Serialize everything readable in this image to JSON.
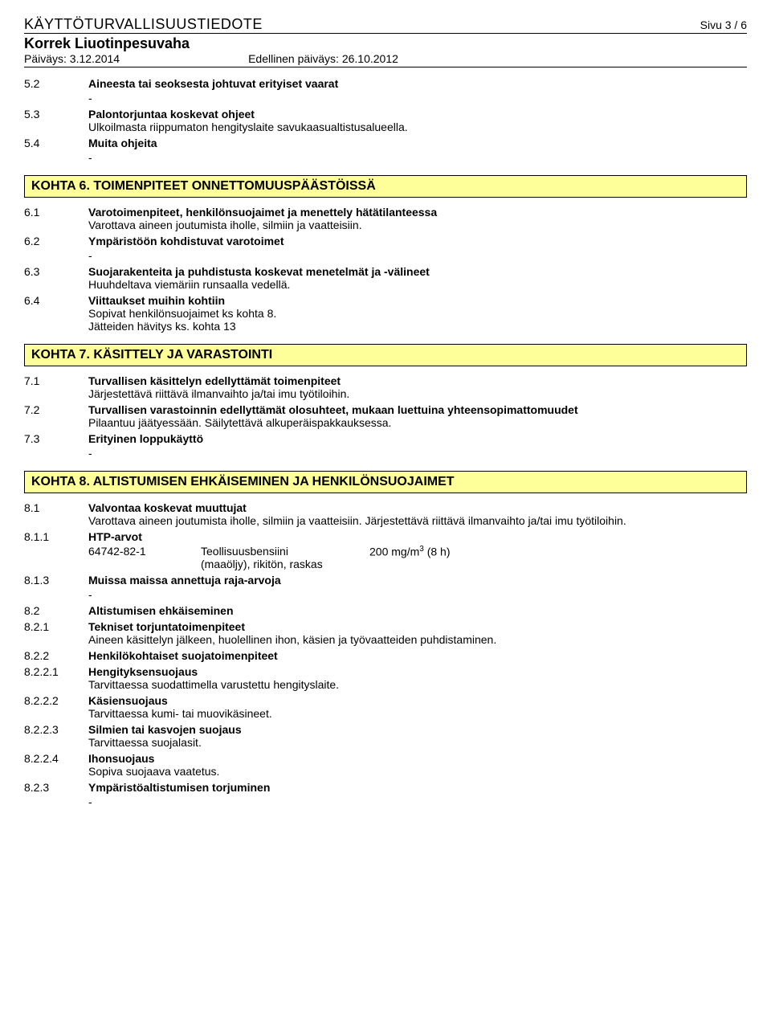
{
  "header": {
    "doc_title": "KÄYTTÖTURVALLISUUSTIEDOTE",
    "page": "Sivu 3 / 6",
    "product": "Korrek Liuotinpesuvaha",
    "date_label": "Päiväys: 3.12.2014",
    "prev_date_label": "Edellinen päiväys: 26.10.2012"
  },
  "pre_sections": [
    {
      "num": "5.2",
      "heading": "Aineesta tai seoksesta johtuvat erityiset vaarat",
      "body": "",
      "dash": true
    },
    {
      "num": "5.3",
      "heading": "Palontorjuntaa koskevat ohjeet",
      "body": "Ulkoilmasta riippumaton hengityslaite savukaasualtistusalueella.",
      "dash": false
    },
    {
      "num": "5.4",
      "heading": "Muita ohjeita",
      "body": "",
      "dash": true
    }
  ],
  "kohta6": {
    "title": "KOHTA 6. TOIMENPITEET ONNETTOMUUSPÄÄSTÖISSÄ",
    "rows": [
      {
        "num": "6.1",
        "heading": "Varotoimenpiteet, henkilönsuojaimet ja menettely hätätilanteessa",
        "body": "Varottava aineen joutumista iholle, silmiin ja vaatteisiin.",
        "dash": false
      },
      {
        "num": "6.2",
        "heading": "Ympäristöön kohdistuvat varotoimet",
        "body": "",
        "dash": true
      },
      {
        "num": "6.3",
        "heading": "Suojarakenteita ja puhdistusta koskevat menetelmät ja -välineet",
        "body": "Huuhdeltava viemäriin runsaalla vedellä.",
        "dash": false
      },
      {
        "num": "6.4",
        "heading": "Viittaukset muihin kohtiin",
        "body": "Sopivat henkilönsuojaimet ks kohta 8.",
        "body2": "Jätteiden hävitys ks. kohta 13",
        "dash": false
      }
    ]
  },
  "kohta7": {
    "title": "KOHTA 7. KÄSITTELY JA VARASTOINTI",
    "rows": [
      {
        "num": "7.1",
        "heading": "Turvallisen käsittelyn edellyttämät toimenpiteet",
        "body": "Järjestettävä riittävä ilmanvaihto ja/tai imu työtiloihin.",
        "dash": false
      },
      {
        "num": "7.2",
        "heading": "Turvallisen varastoinnin edellyttämät olosuhteet, mukaan luettuina yhteensopimattomuudet",
        "body": "Pilaantuu jäätyessään. Säilytettävä alkuperäispakkauksessa.",
        "dash": false
      },
      {
        "num": "7.3",
        "heading": "Erityinen loppukäyttö",
        "body": "",
        "dash": true
      }
    ]
  },
  "kohta8": {
    "title": "KOHTA 8. ALTISTUMISEN EHKÄISEMINEN JA HENKILÖNSUOJAIMET",
    "rows1": [
      {
        "num": "8.1",
        "heading": "Valvontaa koskevat muuttujat",
        "body": "Varottava aineen joutumista iholle, silmiin ja vaatteisiin. Järjestettävä riittävä ilmanvaihto ja/tai imu työtiloihin.",
        "dash": false
      },
      {
        "num": "8.1.1",
        "heading": "HTP-arvot",
        "body": "",
        "dash": false
      }
    ],
    "htp": {
      "cas": "64742-82-1",
      "name_line1": "Teollisuusbensiini",
      "name_line2": "(maaöljy), rikitön, raskas",
      "value_pre": "200 mg/m",
      "value_sup": "3",
      "value_post": " (8 h)"
    },
    "rows2": [
      {
        "num": "8.1.3",
        "heading": "Muissa maissa annettuja raja-arvoja",
        "body": "",
        "dash": true
      },
      {
        "num": "8.2",
        "heading": "Altistumisen ehkäiseminen",
        "body": "",
        "dash": false
      },
      {
        "num": "8.2.1",
        "heading": "Tekniset torjuntatoimenpiteet",
        "body": "Aineen käsittelyn jälkeen, huolellinen ihon, käsien ja työvaatteiden puhdistaminen.",
        "dash": false
      },
      {
        "num": "8.2.2",
        "heading": "Henkilökohtaiset suojatoimenpiteet",
        "body": "",
        "dash": false
      },
      {
        "num": "8.2.2.1",
        "heading": "Hengityksensuojaus",
        "body": "Tarvittaessa suodattimella varustettu hengityslaite.",
        "dash": false
      },
      {
        "num": "8.2.2.2",
        "heading": "Käsiensuojaus",
        "body": "Tarvittaessa kumi- tai muovikäsineet.",
        "dash": false
      },
      {
        "num": "8.2.2.3",
        "heading": "Silmien tai kasvojen suojaus",
        "body": "Tarvittaessa suojalasit.",
        "dash": false
      },
      {
        "num": "8.2.2.4",
        "heading": "Ihonsuojaus",
        "body": "Sopiva suojaava vaatetus.",
        "dash": false
      },
      {
        "num": "8.2.3",
        "heading": "Ympäristöaltistumisen torjuminen",
        "body": "",
        "dash": true
      }
    ]
  }
}
